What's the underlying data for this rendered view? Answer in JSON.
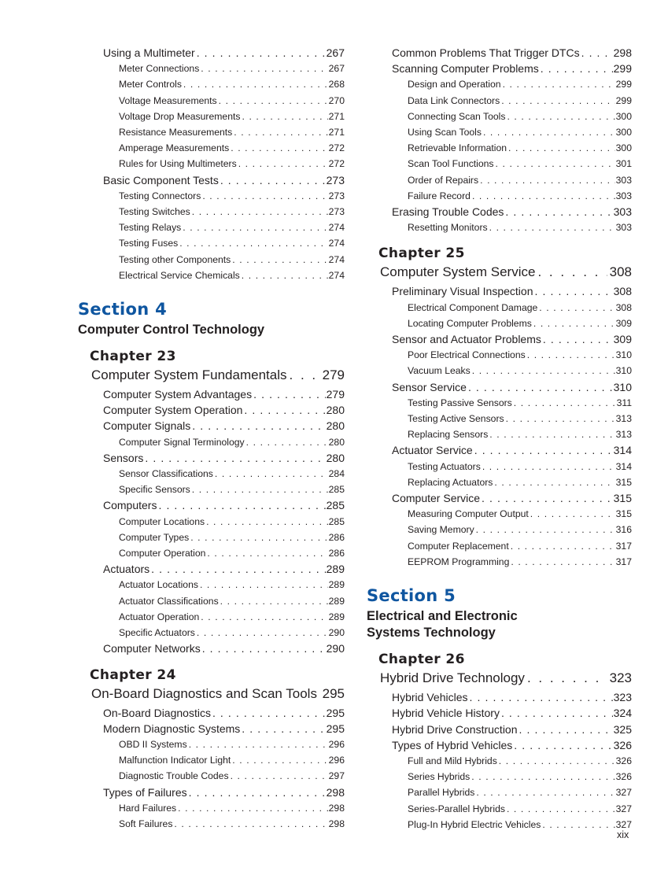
{
  "page": {
    "folio": "xix",
    "text_color": "#231f20",
    "section_color": "#0f56a0"
  },
  "columns": [
    {
      "blocks": [
        {
          "type": "entry",
          "level": 1,
          "label": "Using a Multimeter",
          "page": "267"
        },
        {
          "type": "entry",
          "level": 2,
          "label": "Meter Connections",
          "page": "267"
        },
        {
          "type": "entry",
          "level": 2,
          "label": "Meter Controls",
          "page": "268"
        },
        {
          "type": "entry",
          "level": 2,
          "label": "Voltage Measurements",
          "page": "270"
        },
        {
          "type": "entry",
          "level": 2,
          "label": "Voltage Drop Measurements",
          "page": "271"
        },
        {
          "type": "entry",
          "level": 2,
          "label": "Resistance Measurements",
          "page": "271"
        },
        {
          "type": "entry",
          "level": 2,
          "label": "Amperage Measurements",
          "page": "272"
        },
        {
          "type": "entry",
          "level": 2,
          "label": "Rules for Using Multimeters",
          "page": "272"
        },
        {
          "type": "entry",
          "level": 1,
          "label": "Basic Component Tests",
          "page": "273"
        },
        {
          "type": "entry",
          "level": 2,
          "label": "Testing Connectors",
          "page": "273"
        },
        {
          "type": "entry",
          "level": 2,
          "label": "Testing Switches",
          "page": "273"
        },
        {
          "type": "entry",
          "level": 2,
          "label": "Testing Relays",
          "page": "274"
        },
        {
          "type": "entry",
          "level": 2,
          "label": "Testing Fuses",
          "page": "274"
        },
        {
          "type": "entry",
          "level": 2,
          "label": "Testing other Components",
          "page": "274"
        },
        {
          "type": "entry",
          "level": 2,
          "label": "Electrical Service Chemicals",
          "page": "274"
        },
        {
          "type": "section",
          "title": "Section 4",
          "subtitle_lines": [
            "Computer Control Technology"
          ]
        },
        {
          "type": "chapter",
          "heading": "Chapter 23",
          "title": "Computer System Fundamentals",
          "page": "279"
        },
        {
          "type": "entry",
          "level": 1,
          "label": "Computer System Advantages",
          "page": "279"
        },
        {
          "type": "entry",
          "level": 1,
          "label": "Computer System Operation",
          "page": "280"
        },
        {
          "type": "entry",
          "level": 1,
          "label": "Computer Signals",
          "page": "280"
        },
        {
          "type": "entry",
          "level": 2,
          "label": "Computer Signal Terminology",
          "page": "280"
        },
        {
          "type": "entry",
          "level": 1,
          "label": "Sensors",
          "page": "280"
        },
        {
          "type": "entry",
          "level": 2,
          "label": "Sensor Classifications",
          "page": "284"
        },
        {
          "type": "entry",
          "level": 2,
          "label": "Specific Sensors",
          "page": "285"
        },
        {
          "type": "entry",
          "level": 1,
          "label": "Computers",
          "page": "285"
        },
        {
          "type": "entry",
          "level": 2,
          "label": "Computer Locations",
          "page": "285"
        },
        {
          "type": "entry",
          "level": 2,
          "label": "Computer Types",
          "page": "286"
        },
        {
          "type": "entry",
          "level": 2,
          "label": "Computer Operation",
          "page": "286"
        },
        {
          "type": "entry",
          "level": 1,
          "label": "Actuators",
          "page": "289"
        },
        {
          "type": "entry",
          "level": 2,
          "label": "Actuator Locations",
          "page": "289"
        },
        {
          "type": "entry",
          "level": 2,
          "label": "Actuator Classifications",
          "page": "289"
        },
        {
          "type": "entry",
          "level": 2,
          "label": "Actuator Operation",
          "page": "289"
        },
        {
          "type": "entry",
          "level": 2,
          "label": "Specific Actuators",
          "page": "290"
        },
        {
          "type": "entry",
          "level": 1,
          "label": "Computer Networks",
          "page": "290"
        },
        {
          "type": "chapter",
          "heading": "Chapter 24",
          "title": "On-Board Diagnostics and Scan Tools",
          "page": "295"
        },
        {
          "type": "entry",
          "level": 1,
          "label": "On-Board Diagnostics",
          "page": "295"
        },
        {
          "type": "entry",
          "level": 1,
          "label": "Modern Diagnostic Systems",
          "page": "295"
        },
        {
          "type": "entry",
          "level": 2,
          "label": "OBD II Systems",
          "page": "296"
        },
        {
          "type": "entry",
          "level": 2,
          "label": "Malfunction Indicator Light",
          "page": "296"
        },
        {
          "type": "entry",
          "level": 2,
          "label": "Diagnostic Trouble Codes",
          "page": "297"
        },
        {
          "type": "entry",
          "level": 1,
          "label": "Types of Failures",
          "page": "298"
        },
        {
          "type": "entry",
          "level": 2,
          "label": "Hard Failures",
          "page": "298"
        },
        {
          "type": "entry",
          "level": 2,
          "label": "Soft Failures",
          "page": "298"
        }
      ]
    },
    {
      "blocks": [
        {
          "type": "entry",
          "level": 1,
          "label": "Common Problems That Trigger DTCs",
          "page": "298"
        },
        {
          "type": "entry",
          "level": 1,
          "label": "Scanning Computer Problems",
          "page": "299"
        },
        {
          "type": "entry",
          "level": 2,
          "label": "Design and Operation",
          "page": "299"
        },
        {
          "type": "entry",
          "level": 2,
          "label": "Data Link Connectors",
          "page": "299"
        },
        {
          "type": "entry",
          "level": 2,
          "label": "Connecting Scan Tools",
          "page": "300"
        },
        {
          "type": "entry",
          "level": 2,
          "label": "Using Scan Tools",
          "page": "300"
        },
        {
          "type": "entry",
          "level": 2,
          "label": "Retrievable Information",
          "page": "300"
        },
        {
          "type": "entry",
          "level": 2,
          "label": "Scan Tool Functions",
          "page": "301"
        },
        {
          "type": "entry",
          "level": 2,
          "label": "Order of Repairs",
          "page": "303"
        },
        {
          "type": "entry",
          "level": 2,
          "label": "Failure Record",
          "page": "303"
        },
        {
          "type": "entry",
          "level": 1,
          "label": "Erasing Trouble Codes",
          "page": "303"
        },
        {
          "type": "entry",
          "level": 2,
          "label": "Resetting Monitors",
          "page": "303"
        },
        {
          "type": "chapter",
          "heading": "Chapter 25",
          "title": "Computer System Service",
          "page": "308"
        },
        {
          "type": "entry",
          "level": 1,
          "label": "Preliminary Visual Inspection",
          "page": "308"
        },
        {
          "type": "entry",
          "level": 2,
          "label": "Electrical Component Damage",
          "page": "308"
        },
        {
          "type": "entry",
          "level": 2,
          "label": "Locating Computer Problems",
          "page": "309"
        },
        {
          "type": "entry",
          "level": 1,
          "label": "Sensor and Actuator Problems",
          "page": "309"
        },
        {
          "type": "entry",
          "level": 2,
          "label": "Poor Electrical Connections",
          "page": "310"
        },
        {
          "type": "entry",
          "level": 2,
          "label": "Vacuum Leaks",
          "page": "310"
        },
        {
          "type": "entry",
          "level": 1,
          "label": "Sensor Service",
          "page": "310"
        },
        {
          "type": "entry",
          "level": 2,
          "label": "Testing Passive Sensors",
          "page": "311"
        },
        {
          "type": "entry",
          "level": 2,
          "label": "Testing Active Sensors",
          "page": "313"
        },
        {
          "type": "entry",
          "level": 2,
          "label": "Replacing Sensors",
          "page": "313"
        },
        {
          "type": "entry",
          "level": 1,
          "label": "Actuator Service",
          "page": "314"
        },
        {
          "type": "entry",
          "level": 2,
          "label": "Testing Actuators",
          "page": "314"
        },
        {
          "type": "entry",
          "level": 2,
          "label": "Replacing Actuators",
          "page": "315"
        },
        {
          "type": "entry",
          "level": 1,
          "label": "Computer Service",
          "page": "315"
        },
        {
          "type": "entry",
          "level": 2,
          "label": "Measuring Computer Output",
          "page": "315"
        },
        {
          "type": "entry",
          "level": 2,
          "label": "Saving Memory",
          "page": "316"
        },
        {
          "type": "entry",
          "level": 2,
          "label": "Computer Replacement",
          "page": "317"
        },
        {
          "type": "entry",
          "level": 2,
          "label": "EEPROM Programming",
          "page": "317"
        },
        {
          "type": "section",
          "title": "Section 5",
          "subtitle_lines": [
            "Electrical and Electronic",
            "Systems Technology"
          ]
        },
        {
          "type": "chapter",
          "heading": "Chapter 26",
          "title": "Hybrid Drive Technology",
          "page": "323"
        },
        {
          "type": "entry",
          "level": 1,
          "label": "Hybrid Vehicles",
          "page": "323"
        },
        {
          "type": "entry",
          "level": 1,
          "label": "Hybrid Vehicle History",
          "page": "324"
        },
        {
          "type": "entry",
          "level": 1,
          "label": "Hybrid Drive Construction",
          "page": "325"
        },
        {
          "type": "entry",
          "level": 1,
          "label": "Types of Hybrid Vehicles",
          "page": "326"
        },
        {
          "type": "entry",
          "level": 2,
          "label": "Full and Mild Hybrids",
          "page": "326"
        },
        {
          "type": "entry",
          "level": 2,
          "label": "Series Hybrids",
          "page": "326"
        },
        {
          "type": "entry",
          "level": 2,
          "label": "Parallel Hybrids",
          "page": "327"
        },
        {
          "type": "entry",
          "level": 2,
          "label": "Series-Parallel Hybrids",
          "page": "327"
        },
        {
          "type": "entry",
          "level": 2,
          "label": "Plug-In Hybrid Electric Vehicles",
          "page": "327"
        }
      ]
    }
  ]
}
